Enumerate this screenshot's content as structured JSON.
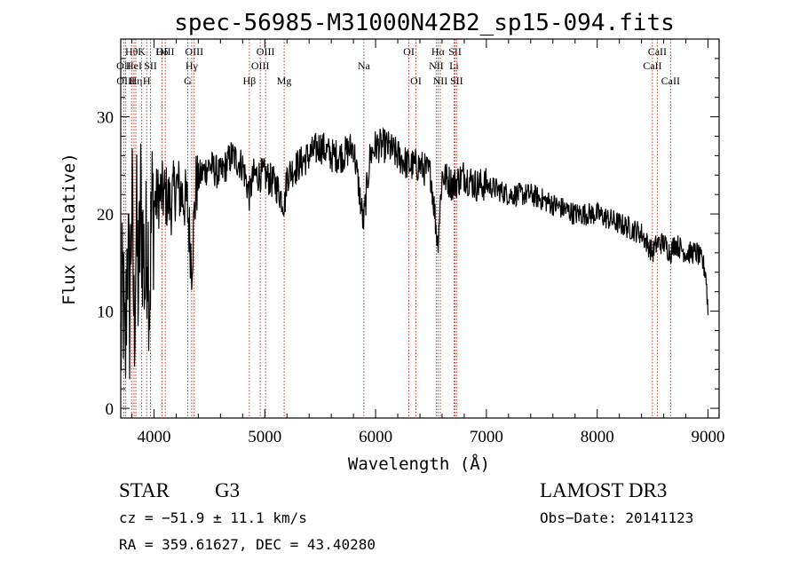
{
  "chart_data": {
    "type": "line",
    "title": "spec-56985-M31000N42B2_sp15-094.fits",
    "xlabel": "Wavelength (Å)",
    "ylabel": "Flux (relative)",
    "xlim": [
      3700,
      9100
    ],
    "ylim": [
      -1,
      38
    ],
    "x_ticks": [
      4000,
      5000,
      6000,
      7000,
      8000,
      9000
    ],
    "y_ticks": [
      0,
      10,
      20,
      30
    ],
    "series": [
      {
        "name": "spectrum",
        "color": "#000000",
        "x": [
          3700,
          3720,
          3740,
          3760,
          3780,
          3800,
          3820,
          3840,
          3860,
          3880,
          3900,
          3920,
          3940,
          3960,
          3980,
          4000,
          4050,
          4100,
          4150,
          4200,
          4250,
          4300,
          4340,
          4380,
          4420,
          4500,
          4600,
          4700,
          4800,
          4860,
          4900,
          5000,
          5100,
          5180,
          5200,
          5300,
          5400,
          5500,
          5600,
          5700,
          5800,
          5890,
          5950,
          6000,
          6100,
          6200,
          6300,
          6400,
          6500,
          6560,
          6600,
          6700,
          6800,
          6900,
          7000,
          7200,
          7400,
          7600,
          7800,
          8000,
          8200,
          8400,
          8500,
          8540,
          8600,
          8660,
          8700,
          8800,
          8900,
          8950,
          8980,
          9000
        ],
        "y": [
          6,
          13,
          3,
          18,
          10,
          22,
          8,
          19,
          12,
          21,
          17,
          13,
          19,
          12,
          20,
          21,
          22,
          22,
          21,
          23,
          22,
          21,
          15,
          23,
          24,
          25,
          24,
          26,
          25,
          22,
          24,
          24,
          23,
          21,
          24,
          25,
          26,
          27,
          26,
          26,
          27,
          19,
          26,
          27,
          27,
          26,
          25,
          25,
          24,
          17,
          24,
          23,
          24,
          23,
          23,
          22,
          22,
          21,
          20,
          20,
          19,
          18,
          16,
          17,
          17,
          16,
          17,
          16,
          16,
          15,
          14,
          10
        ]
      }
    ],
    "spectral_lines": [
      {
        "label": "Hθ",
        "x": 3798,
        "row": 1
      },
      {
        "label": "OII",
        "x": 3727,
        "row": 2
      },
      {
        "label": "OIII",
        "x": 3745,
        "row": 3
      },
      {
        "label": "HeI",
        "x": 3820,
        "row": 2
      },
      {
        "label": "Hη",
        "x": 3836,
        "row": 3
      },
      {
        "label": "K",
        "x": 3889,
        "row": 1
      },
      {
        "label": "H",
        "x": 3934,
        "row": 3
      },
      {
        "label": "SII",
        "x": 3969,
        "row": 2
      },
      {
        "label": "Hδ",
        "x": 4072,
        "row": 1
      },
      {
        "label": "OIII",
        "x": 4102,
        "row": 1
      },
      {
        "label": "Hγ",
        "x": 4340,
        "row": 2
      },
      {
        "label": "G",
        "x": 4305,
        "row": 3
      },
      {
        "label": "OIII",
        "x": 4363,
        "row": 1
      },
      {
        "label": "Hβ",
        "x": 4861,
        "row": 3
      },
      {
        "label": "OIII",
        "x": 4959,
        "row": 2
      },
      {
        "label": "OIII",
        "x": 5007,
        "row": 1
      },
      {
        "label": "Mg",
        "x": 5175,
        "row": 3
      },
      {
        "label": "Na",
        "x": 5894,
        "row": 2
      },
      {
        "label": "OI",
        "x": 6300,
        "row": 1
      },
      {
        "label": "OI",
        "x": 6364,
        "row": 3
      },
      {
        "label": "Hα",
        "x": 6563,
        "row": 1
      },
      {
        "label": "NII",
        "x": 6548,
        "row": 2
      },
      {
        "label": "NII",
        "x": 6584,
        "row": 3
      },
      {
        "label": "SII",
        "x": 6717,
        "row": 1
      },
      {
        "label": "Li",
        "x": 6708,
        "row": 2
      },
      {
        "label": "SII",
        "x": 6731,
        "row": 3
      },
      {
        "label": "CaII",
        "x": 8542,
        "row": 1
      },
      {
        "label": "CaII",
        "x": 8498,
        "row": 2
      },
      {
        "label": "CaII",
        "x": 8662,
        "row": 3
      }
    ]
  },
  "footer": {
    "class_text": "STAR",
    "subclass_text": "G3",
    "survey": "LAMOST DR3",
    "cz": "cz = −51.9 ± 11.1 km/s",
    "obs_date": "Obs−Date: 20141123",
    "coords": "RA = 359.61627, DEC =  43.40280"
  }
}
